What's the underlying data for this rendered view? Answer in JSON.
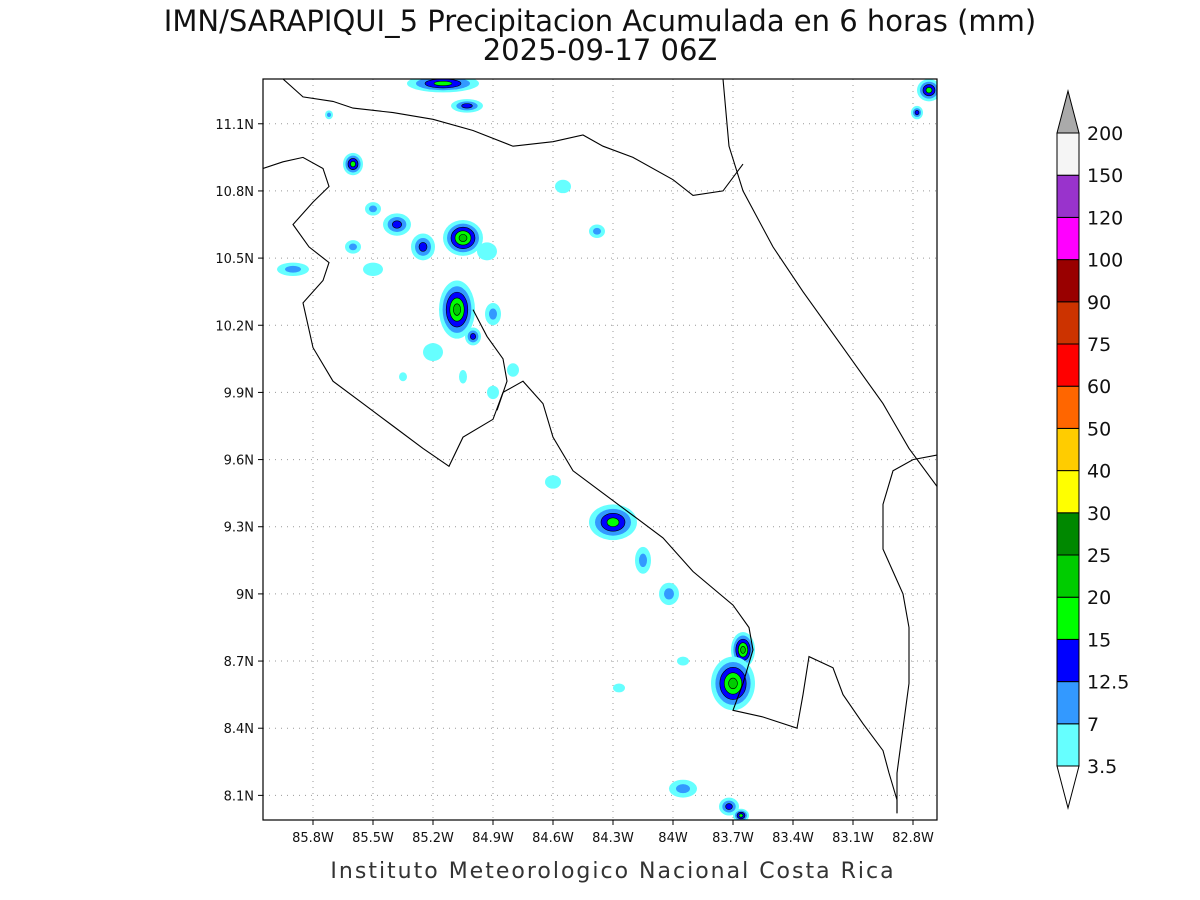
{
  "title": {
    "line1": "IMN/SARAPIQUI_5 Precipitacion Acumulada en 6 horas (mm)",
    "line2": "2025-09-17 06Z"
  },
  "footer": "Instituto Meteorologico Nacional Costa Rica",
  "map": {
    "lon_range": [
      -86.05,
      -82.68
    ],
    "lat_range": [
      7.99,
      11.3
    ],
    "lon_ticks": [
      {
        "value": -85.8,
        "label": "85.8W"
      },
      {
        "value": -85.5,
        "label": "85.5W"
      },
      {
        "value": -85.2,
        "label": "85.2W"
      },
      {
        "value": -84.9,
        "label": "84.9W"
      },
      {
        "value": -84.6,
        "label": "84.6W"
      },
      {
        "value": -84.3,
        "label": "84.3W"
      },
      {
        "value": -84.0,
        "label": "84W"
      },
      {
        "value": -83.7,
        "label": "83.7W"
      },
      {
        "value": -83.4,
        "label": "83.4W"
      },
      {
        "value": -83.1,
        "label": "83.1W"
      },
      {
        "value": -82.8,
        "label": "82.8W"
      }
    ],
    "lat_ticks": [
      {
        "value": 11.1,
        "label": "11.1N"
      },
      {
        "value": 10.8,
        "label": "10.8N"
      },
      {
        "value": 10.5,
        "label": "10.5N"
      },
      {
        "value": 10.2,
        "label": "10.2N"
      },
      {
        "value": 9.9,
        "label": "9.9N"
      },
      {
        "value": 9.6,
        "label": "9.6N"
      },
      {
        "value": 9.3,
        "label": "9.3N"
      },
      {
        "value": 9.0,
        "label": "9N"
      },
      {
        "value": 8.7,
        "label": "8.7N"
      },
      {
        "value": 8.4,
        "label": "8.4N"
      },
      {
        "value": 8.1,
        "label": "8.1N"
      }
    ],
    "grid": "dotted",
    "coastlines": [
      [
        [
          -85.95,
          11.3
        ],
        [
          -85.85,
          11.22
        ],
        [
          -85.7,
          11.2
        ],
        [
          -85.6,
          11.17
        ],
        [
          -85.4,
          11.15
        ],
        [
          -85.2,
          11.12
        ],
        [
          -85.0,
          11.07
        ],
        [
          -84.8,
          11.0
        ],
        [
          -84.6,
          11.02
        ],
        [
          -84.45,
          11.05
        ],
        [
          -84.35,
          11.0
        ],
        [
          -84.2,
          10.95
        ],
        [
          -84.0,
          10.85
        ],
        [
          -83.9,
          10.78
        ],
        [
          -83.75,
          10.8
        ],
        [
          -83.65,
          10.92
        ]
      ],
      [
        [
          -86.05,
          10.9
        ],
        [
          -85.95,
          10.93
        ],
        [
          -85.85,
          10.95
        ],
        [
          -85.75,
          10.9
        ],
        [
          -85.72,
          10.82
        ],
        [
          -85.8,
          10.75
        ],
        [
          -85.9,
          10.65
        ],
        [
          -85.82,
          10.55
        ],
        [
          -85.72,
          10.48
        ],
        [
          -85.75,
          10.4
        ],
        [
          -85.85,
          10.3
        ],
        [
          -85.8,
          10.1
        ],
        [
          -85.7,
          9.95
        ],
        [
          -85.55,
          9.85
        ],
        [
          -85.4,
          9.75
        ],
        [
          -85.25,
          9.65
        ],
        [
          -85.12,
          9.57
        ],
        [
          -85.05,
          9.7
        ],
        [
          -84.9,
          9.78
        ],
        [
          -84.85,
          9.9
        ],
        [
          -84.75,
          9.95
        ],
        [
          -84.65,
          9.85
        ],
        [
          -84.6,
          9.7
        ],
        [
          -84.5,
          9.55
        ],
        [
          -84.35,
          9.45
        ],
        [
          -84.2,
          9.35
        ],
        [
          -84.05,
          9.25
        ],
        [
          -83.9,
          9.1
        ],
        [
          -83.7,
          8.95
        ],
        [
          -83.62,
          8.85
        ],
        [
          -83.6,
          8.75
        ],
        [
          -83.65,
          8.6
        ],
        [
          -83.7,
          8.48
        ],
        [
          -83.55,
          8.45
        ],
        [
          -83.38,
          8.4
        ],
        [
          -83.35,
          8.55
        ],
        [
          -83.32,
          8.72
        ],
        [
          -83.2,
          8.67
        ],
        [
          -83.15,
          8.55
        ],
        [
          -83.05,
          8.42
        ],
        [
          -82.95,
          8.3
        ],
        [
          -82.92,
          8.2
        ],
        [
          -82.88,
          8.08
        ],
        [
          -82.88,
          8.02
        ]
      ],
      [
        [
          -85.0,
          10.27
        ],
        [
          -84.93,
          10.15
        ],
        [
          -84.85,
          10.05
        ],
        [
          -84.83,
          9.95
        ],
        [
          -84.88,
          9.82
        ]
      ],
      [
        [
          -83.75,
          11.3
        ],
        [
          -83.72,
          11.0
        ],
        [
          -83.65,
          10.8
        ],
        [
          -83.5,
          10.55
        ],
        [
          -83.35,
          10.35
        ],
        [
          -83.15,
          10.1
        ],
        [
          -82.95,
          9.85
        ],
        [
          -82.82,
          9.65
        ],
        [
          -82.68,
          9.48
        ]
      ],
      [
        [
          -82.88,
          8.02
        ],
        [
          -82.88,
          8.2
        ],
        [
          -82.85,
          8.4
        ],
        [
          -82.82,
          8.6
        ],
        [
          -82.82,
          8.85
        ],
        [
          -82.85,
          9.0
        ],
        [
          -82.9,
          9.1
        ],
        [
          -82.95,
          9.2
        ],
        [
          -82.95,
          9.4
        ],
        [
          -82.9,
          9.55
        ],
        [
          -82.8,
          9.6
        ],
        [
          -82.68,
          9.62
        ]
      ]
    ],
    "precip_cells": [
      {
        "lon": -85.15,
        "lat": 11.28,
        "rx": 0.18,
        "ry": 0.04,
        "level": 4
      },
      {
        "lon": -85.03,
        "lat": 11.18,
        "rx": 0.08,
        "ry": 0.03,
        "level": 3
      },
      {
        "lon": -85.6,
        "lat": 10.92,
        "rx": 0.05,
        "ry": 0.05,
        "level": 4
      },
      {
        "lon": -85.72,
        "lat": 11.14,
        "rx": 0.02,
        "ry": 0.02,
        "level": 2
      },
      {
        "lon": -85.5,
        "lat": 10.72,
        "rx": 0.04,
        "ry": 0.03,
        "level": 2
      },
      {
        "lon": -85.38,
        "lat": 10.65,
        "rx": 0.07,
        "ry": 0.05,
        "level": 3
      },
      {
        "lon": -85.25,
        "lat": 10.55,
        "rx": 0.06,
        "ry": 0.06,
        "level": 3
      },
      {
        "lon": -85.05,
        "lat": 10.59,
        "rx": 0.1,
        "ry": 0.08,
        "level": 5
      },
      {
        "lon": -84.93,
        "lat": 10.53,
        "rx": 0.05,
        "ry": 0.04,
        "level": 1
      },
      {
        "lon": -85.6,
        "lat": 10.55,
        "rx": 0.04,
        "ry": 0.03,
        "level": 2
      },
      {
        "lon": -85.9,
        "lat": 10.45,
        "rx": 0.08,
        "ry": 0.03,
        "level": 2
      },
      {
        "lon": -85.5,
        "lat": 10.45,
        "rx": 0.05,
        "ry": 0.03,
        "level": 1
      },
      {
        "lon": -85.08,
        "lat": 10.27,
        "rx": 0.09,
        "ry": 0.13,
        "level": 5
      },
      {
        "lon": -84.9,
        "lat": 10.25,
        "rx": 0.04,
        "ry": 0.05,
        "level": 2
      },
      {
        "lon": -85.0,
        "lat": 10.15,
        "rx": 0.04,
        "ry": 0.04,
        "level": 3
      },
      {
        "lon": -85.2,
        "lat": 10.08,
        "rx": 0.05,
        "ry": 0.04,
        "level": 1
      },
      {
        "lon": -84.8,
        "lat": 10.0,
        "rx": 0.03,
        "ry": 0.03,
        "level": 1
      },
      {
        "lon": -85.05,
        "lat": 9.97,
        "rx": 0.02,
        "ry": 0.03,
        "level": 1
      },
      {
        "lon": -84.9,
        "lat": 9.9,
        "rx": 0.03,
        "ry": 0.03,
        "level": 1
      },
      {
        "lon": -85.35,
        "lat": 9.97,
        "rx": 0.02,
        "ry": 0.02,
        "level": 1
      },
      {
        "lon": -84.55,
        "lat": 10.82,
        "rx": 0.04,
        "ry": 0.03,
        "level": 1
      },
      {
        "lon": -84.38,
        "lat": 10.62,
        "rx": 0.04,
        "ry": 0.03,
        "level": 2
      },
      {
        "lon": -84.6,
        "lat": 9.5,
        "rx": 0.04,
        "ry": 0.03,
        "level": 1
      },
      {
        "lon": -84.3,
        "lat": 9.32,
        "rx": 0.12,
        "ry": 0.08,
        "level": 4
      },
      {
        "lon": -84.15,
        "lat": 9.15,
        "rx": 0.04,
        "ry": 0.06,
        "level": 2
      },
      {
        "lon": -84.02,
        "lat": 9.0,
        "rx": 0.05,
        "ry": 0.05,
        "level": 2
      },
      {
        "lon": -83.65,
        "lat": 8.75,
        "rx": 0.06,
        "ry": 0.08,
        "level": 5
      },
      {
        "lon": -83.7,
        "lat": 8.6,
        "rx": 0.11,
        "ry": 0.12,
        "level": 5
      },
      {
        "lon": -83.95,
        "lat": 8.7,
        "rx": 0.03,
        "ry": 0.02,
        "level": 1
      },
      {
        "lon": -84.27,
        "lat": 8.58,
        "rx": 0.03,
        "ry": 0.02,
        "level": 1
      },
      {
        "lon": -83.95,
        "lat": 8.13,
        "rx": 0.07,
        "ry": 0.04,
        "level": 2
      },
      {
        "lon": -83.72,
        "lat": 8.05,
        "rx": 0.05,
        "ry": 0.04,
        "level": 3
      },
      {
        "lon": -83.66,
        "lat": 8.01,
        "rx": 0.04,
        "ry": 0.03,
        "level": 4
      },
      {
        "lon": -82.72,
        "lat": 11.25,
        "rx": 0.06,
        "ry": 0.05,
        "level": 4
      },
      {
        "lon": -82.78,
        "lat": 11.15,
        "rx": 0.03,
        "ry": 0.03,
        "level": 3
      }
    ]
  },
  "legend": {
    "levels": [
      {
        "label": "3.5",
        "color": "#66ffff"
      },
      {
        "label": "7",
        "color": "#3399ff"
      },
      {
        "label": "12.5",
        "color": "#0000ff"
      },
      {
        "label": "15",
        "color": "#00ff00"
      },
      {
        "label": "20",
        "color": "#00cc00"
      },
      {
        "label": "25",
        "color": "#008800"
      },
      {
        "label": "30",
        "color": "#ffff00"
      },
      {
        "label": "40",
        "color": "#ffcc00"
      },
      {
        "label": "50",
        "color": "#ff6600"
      },
      {
        "label": "60",
        "color": "#ff0000"
      },
      {
        "label": "75",
        "color": "#cc3300"
      },
      {
        "label": "90",
        "color": "#990000"
      },
      {
        "label": "100",
        "color": "#ff00ff"
      },
      {
        "label": "120",
        "color": "#9933cc"
      },
      {
        "label": "150",
        "color": "#f5f5f5"
      },
      {
        "label": "200",
        "color": "#aaaaaa"
      }
    ],
    "bottom_arrow_color": "#ffffff",
    "top_arrow_color": "#aaaaaa"
  }
}
